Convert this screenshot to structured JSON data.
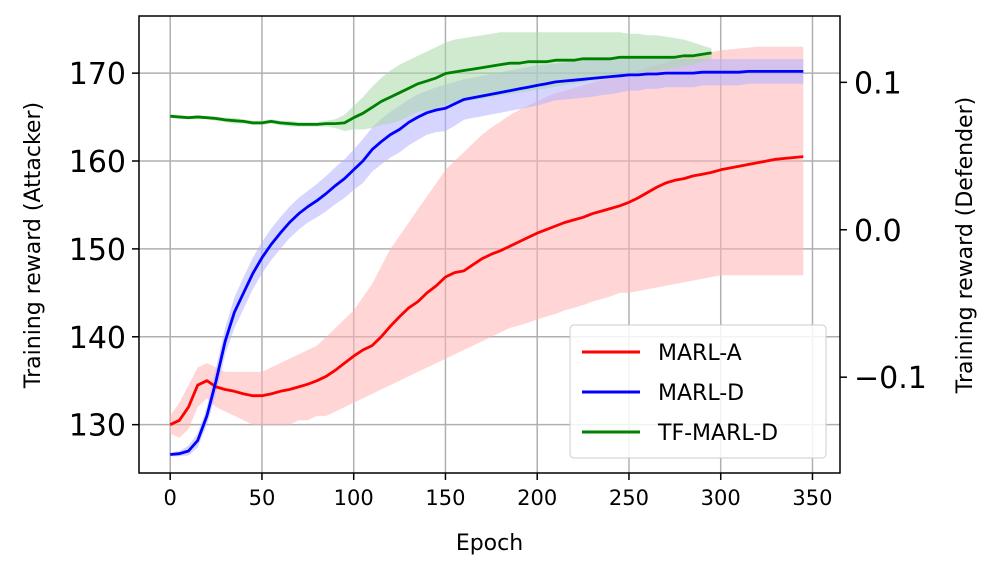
{
  "chart_data": {
    "type": "line",
    "xlabel": "Epoch",
    "ylabel_left": "Training reward (Attacker)",
    "ylabel_right": "Training reward (Defender)",
    "xlim": [
      -17,
      365
    ],
    "ylim_left": [
      124.5,
      176.5
    ],
    "ylim_right": [
      -0.165,
      0.145
    ],
    "x_ticks": [
      0,
      50,
      100,
      150,
      200,
      250,
      300,
      350
    ],
    "y_left_ticks": [
      130,
      140,
      150,
      160,
      170
    ],
    "y_right_ticks": [
      -0.1,
      0.0,
      0.1
    ],
    "y_right_tick_labels": [
      "−0.1",
      "0.0",
      "0.1"
    ],
    "grid": true,
    "legend_position": "lower-right",
    "series": [
      {
        "name": "MARL-A",
        "axis": "left",
        "color": "#ff0000",
        "band_color": "#ffb3b3",
        "x": [
          0,
          5,
          10,
          15,
          20,
          25,
          30,
          35,
          40,
          45,
          50,
          55,
          60,
          65,
          70,
          75,
          80,
          85,
          90,
          95,
          100,
          105,
          110,
          115,
          120,
          125,
          130,
          135,
          140,
          145,
          150,
          155,
          160,
          165,
          170,
          175,
          180,
          185,
          190,
          195,
          200,
          205,
          210,
          215,
          220,
          225,
          230,
          235,
          240,
          245,
          250,
          255,
          260,
          265,
          270,
          275,
          280,
          285,
          290,
          295,
          300,
          305,
          310,
          315,
          320,
          325,
          330,
          335,
          340,
          345
        ],
        "mean": [
          130.0,
          130.5,
          132.0,
          134.5,
          135.0,
          134.3,
          134.0,
          133.8,
          133.5,
          133.3,
          133.3,
          133.5,
          133.8,
          134.0,
          134.3,
          134.6,
          135.0,
          135.5,
          136.2,
          137.0,
          137.8,
          138.5,
          139.0,
          140.0,
          141.2,
          142.3,
          143.3,
          144.0,
          145.0,
          145.8,
          146.8,
          147.3,
          147.5,
          148.2,
          148.9,
          149.4,
          149.8,
          150.3,
          150.8,
          151.3,
          151.8,
          152.2,
          152.6,
          153.0,
          153.3,
          153.6,
          154.0,
          154.3,
          154.6,
          154.9,
          155.3,
          155.8,
          156.4,
          157.0,
          157.5,
          157.8,
          158.0,
          158.3,
          158.5,
          158.7,
          159.0,
          159.2,
          159.4,
          159.6,
          159.8,
          160.0,
          160.2,
          160.3,
          160.4,
          160.5
        ],
        "upper": [
          131.0,
          132.5,
          134.5,
          136.5,
          137.0,
          136.5,
          136.0,
          136.0,
          136.0,
          136.0,
          136.0,
          136.5,
          137.0,
          137.5,
          138.0,
          138.5,
          139.0,
          140.0,
          141.0,
          142.0,
          143.0,
          144.5,
          146.0,
          148.0,
          150.0,
          151.5,
          153.0,
          154.5,
          156.0,
          157.5,
          159.0,
          160.0,
          161.0,
          162.0,
          163.0,
          163.8,
          164.5,
          165.2,
          165.8,
          166.3,
          166.8,
          167.3,
          167.7,
          168.0,
          168.3,
          168.6,
          168.9,
          169.2,
          169.5,
          169.8,
          170.0,
          170.3,
          170.6,
          170.9,
          171.2,
          171.5,
          171.8,
          172.0,
          172.2,
          172.4,
          172.6,
          172.7,
          172.8,
          172.9,
          173.0,
          173.0,
          173.0,
          173.0,
          173.0,
          173.0
        ],
        "lower": [
          129.0,
          128.5,
          129.5,
          132.0,
          133.0,
          132.0,
          131.5,
          131.0,
          130.5,
          130.0,
          130.0,
          130.0,
          130.0,
          130.0,
          130.5,
          130.5,
          131.0,
          131.0,
          131.5,
          132.0,
          132.5,
          133.0,
          133.5,
          134.0,
          134.5,
          135.0,
          135.5,
          136.0,
          136.5,
          137.0,
          137.5,
          138.0,
          138.5,
          139.0,
          139.5,
          140.0,
          140.5,
          141.0,
          141.3,
          141.6,
          142.0,
          142.3,
          142.6,
          143.0,
          143.3,
          143.6,
          144.0,
          144.3,
          144.6,
          145.0,
          145.0,
          145.2,
          145.4,
          145.6,
          145.8,
          146.0,
          146.2,
          146.4,
          146.6,
          146.8,
          147.0,
          147.0,
          147.0,
          147.0,
          147.0,
          147.0,
          147.0,
          147.0,
          147.0,
          147.0
        ]
      },
      {
        "name": "MARL-D",
        "axis": "left",
        "color": "#0000ff",
        "band_color": "#b3b3ff",
        "x": [
          0,
          5,
          10,
          15,
          20,
          25,
          30,
          35,
          40,
          45,
          50,
          55,
          60,
          65,
          70,
          75,
          80,
          85,
          90,
          95,
          100,
          105,
          110,
          115,
          120,
          125,
          130,
          135,
          140,
          145,
          150,
          155,
          160,
          165,
          170,
          175,
          180,
          185,
          190,
          195,
          200,
          205,
          210,
          215,
          220,
          225,
          230,
          235,
          240,
          245,
          250,
          255,
          260,
          265,
          270,
          275,
          280,
          285,
          290,
          295,
          300,
          305,
          310,
          315,
          320,
          325,
          330,
          335,
          340,
          345
        ],
        "mean": [
          126.6,
          126.7,
          127.0,
          128.2,
          131.0,
          135.0,
          139.5,
          142.8,
          145.0,
          147.2,
          149.0,
          150.5,
          151.8,
          153.0,
          154.0,
          154.8,
          155.5,
          156.3,
          157.2,
          158.0,
          159.0,
          160.0,
          161.3,
          162.2,
          163.0,
          163.6,
          164.4,
          165.0,
          165.5,
          165.8,
          166.0,
          166.5,
          167.0,
          167.2,
          167.4,
          167.6,
          167.8,
          168.0,
          168.2,
          168.4,
          168.6,
          168.8,
          169.0,
          169.1,
          169.2,
          169.3,
          169.4,
          169.5,
          169.6,
          169.7,
          169.8,
          169.8,
          169.9,
          169.9,
          170.0,
          170.0,
          170.0,
          170.0,
          170.1,
          170.1,
          170.1,
          170.1,
          170.1,
          170.2,
          170.2,
          170.2,
          170.2,
          170.2,
          170.2,
          170.2
        ],
        "upper": [
          126.8,
          127.0,
          127.6,
          129.0,
          132.0,
          136.5,
          141.0,
          144.5,
          146.8,
          149.0,
          150.8,
          152.3,
          153.6,
          154.8,
          155.8,
          156.6,
          157.4,
          158.3,
          159.3,
          160.2,
          161.3,
          162.5,
          163.8,
          164.8,
          165.6,
          166.3,
          167.0,
          167.6,
          168.0,
          168.4,
          168.7,
          169.0,
          169.3,
          169.5,
          169.7,
          169.9,
          170.1,
          170.3,
          170.5,
          170.7,
          170.9,
          171.0,
          171.1,
          171.2,
          171.3,
          171.4,
          171.5,
          171.5,
          171.6,
          171.6,
          171.6,
          171.6,
          171.6,
          171.6,
          171.6,
          171.6,
          171.6,
          171.6,
          171.6,
          171.6,
          171.6,
          171.6,
          171.6,
          171.6,
          171.6,
          171.6,
          171.6,
          171.6,
          171.6,
          171.6
        ],
        "lower": [
          126.4,
          126.4,
          126.5,
          127.4,
          130.0,
          133.5,
          138.0,
          141.0,
          143.2,
          145.4,
          147.2,
          148.7,
          150.0,
          151.2,
          152.2,
          153.0,
          153.6,
          154.3,
          155.1,
          155.8,
          156.7,
          157.5,
          158.8,
          159.6,
          160.4,
          161.0,
          161.8,
          162.4,
          163.0,
          163.3,
          163.4,
          164.0,
          164.7,
          164.9,
          165.1,
          165.3,
          165.5,
          165.7,
          165.9,
          166.1,
          166.3,
          166.6,
          166.9,
          167.0,
          167.1,
          167.2,
          167.3,
          167.5,
          167.6,
          167.8,
          168.0,
          168.0,
          168.2,
          168.2,
          168.4,
          168.4,
          168.4,
          168.4,
          168.6,
          168.6,
          168.6,
          168.6,
          168.6,
          168.8,
          168.8,
          168.8,
          168.8,
          168.8,
          168.8,
          168.8
        ]
      },
      {
        "name": "TF-MARL-D",
        "axis": "right",
        "color": "#008000",
        "band_color": "#a9d9a9",
        "x": [
          0,
          5,
          10,
          15,
          20,
          25,
          30,
          35,
          40,
          45,
          50,
          55,
          60,
          65,
          70,
          75,
          80,
          85,
          90,
          95,
          100,
          105,
          110,
          115,
          120,
          125,
          130,
          135,
          140,
          145,
          150,
          155,
          160,
          165,
          170,
          175,
          180,
          185,
          190,
          195,
          200,
          205,
          210,
          215,
          220,
          225,
          230,
          235,
          240,
          245,
          250,
          255,
          260,
          265,
          270,
          275,
          280,
          285,
          290,
          295
        ],
        "mean": [
          0.077,
          0.0765,
          0.076,
          0.0765,
          0.076,
          0.0755,
          0.0745,
          0.074,
          0.0735,
          0.0725,
          0.0725,
          0.0735,
          0.0725,
          0.072,
          0.0715,
          0.0715,
          0.0715,
          0.072,
          0.072,
          0.0725,
          0.076,
          0.079,
          0.083,
          0.087,
          0.09,
          0.093,
          0.096,
          0.099,
          0.101,
          0.103,
          0.106,
          0.107,
          0.108,
          0.109,
          0.11,
          0.111,
          0.112,
          0.113,
          0.113,
          0.114,
          0.114,
          0.114,
          0.115,
          0.115,
          0.115,
          0.116,
          0.116,
          0.116,
          0.116,
          0.117,
          0.117,
          0.117,
          0.117,
          0.117,
          0.117,
          0.117,
          0.118,
          0.118,
          0.119,
          0.12
        ],
        "upper": [
          0.078,
          0.078,
          0.077,
          0.078,
          0.077,
          0.077,
          0.076,
          0.076,
          0.075,
          0.074,
          0.074,
          0.075,
          0.074,
          0.074,
          0.073,
          0.073,
          0.073,
          0.074,
          0.075,
          0.078,
          0.084,
          0.09,
          0.097,
          0.103,
          0.108,
          0.112,
          0.115,
          0.118,
          0.121,
          0.124,
          0.127,
          0.129,
          0.13,
          0.131,
          0.132,
          0.133,
          0.134,
          0.134,
          0.134,
          0.134,
          0.134,
          0.134,
          0.134,
          0.134,
          0.134,
          0.134,
          0.134,
          0.134,
          0.134,
          0.134,
          0.133,
          0.133,
          0.132,
          0.132,
          0.131,
          0.13,
          0.129,
          0.127,
          0.125,
          0.123
        ],
        "lower": [
          0.076,
          0.075,
          0.075,
          0.075,
          0.075,
          0.074,
          0.073,
          0.072,
          0.072,
          0.071,
          0.071,
          0.072,
          0.071,
          0.07,
          0.07,
          0.07,
          0.07,
          0.07,
          0.069,
          0.067,
          0.068,
          0.068,
          0.069,
          0.071,
          0.072,
          0.074,
          0.077,
          0.08,
          0.081,
          0.082,
          0.085,
          0.086,
          0.087,
          0.088,
          0.089,
          0.09,
          0.091,
          0.092,
          0.093,
          0.094,
          0.095,
          0.096,
          0.097,
          0.098,
          0.099,
          0.1,
          0.101,
          0.102,
          0.103,
          0.104,
          0.105,
          0.106,
          0.107,
          0.108,
          0.109,
          0.11,
          0.111,
          0.112,
          0.114,
          0.116
        ]
      }
    ]
  }
}
